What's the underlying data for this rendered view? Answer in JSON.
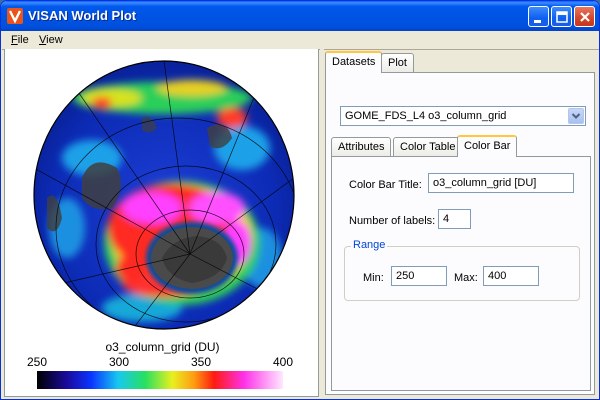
{
  "window": {
    "title": "VISAN World Plot"
  },
  "menu": {
    "items": [
      {
        "accel": "F",
        "rest": "ile"
      },
      {
        "accel": "V",
        "rest": "iew"
      }
    ]
  },
  "plot": {
    "colorbar": {
      "title": "o3_column_grid (DU)",
      "ticks": [
        "250",
        "300",
        "350",
        "400"
      ],
      "range": [
        250,
        400
      ]
    }
  },
  "tabs": {
    "main": [
      "Datasets",
      "Plot"
    ],
    "sub": [
      "Attributes",
      "Color Table",
      "Color Bar"
    ]
  },
  "dataset_select": {
    "value": "GOME_FDS_L4 o3_column_grid"
  },
  "colorbar_form": {
    "title_label": "Color Bar Title:",
    "title_value": "o3_column_grid [DU]",
    "labels_label": "Number of labels:",
    "labels_value": "4",
    "range_legend": "Range",
    "min_label": "Min:",
    "min_value": "250",
    "max_label": "Max:",
    "max_value": "400"
  },
  "colors": {
    "titlebar": "#0054e3",
    "tab_highlight": "#ffc73c",
    "group_legend": "#0046d5"
  }
}
